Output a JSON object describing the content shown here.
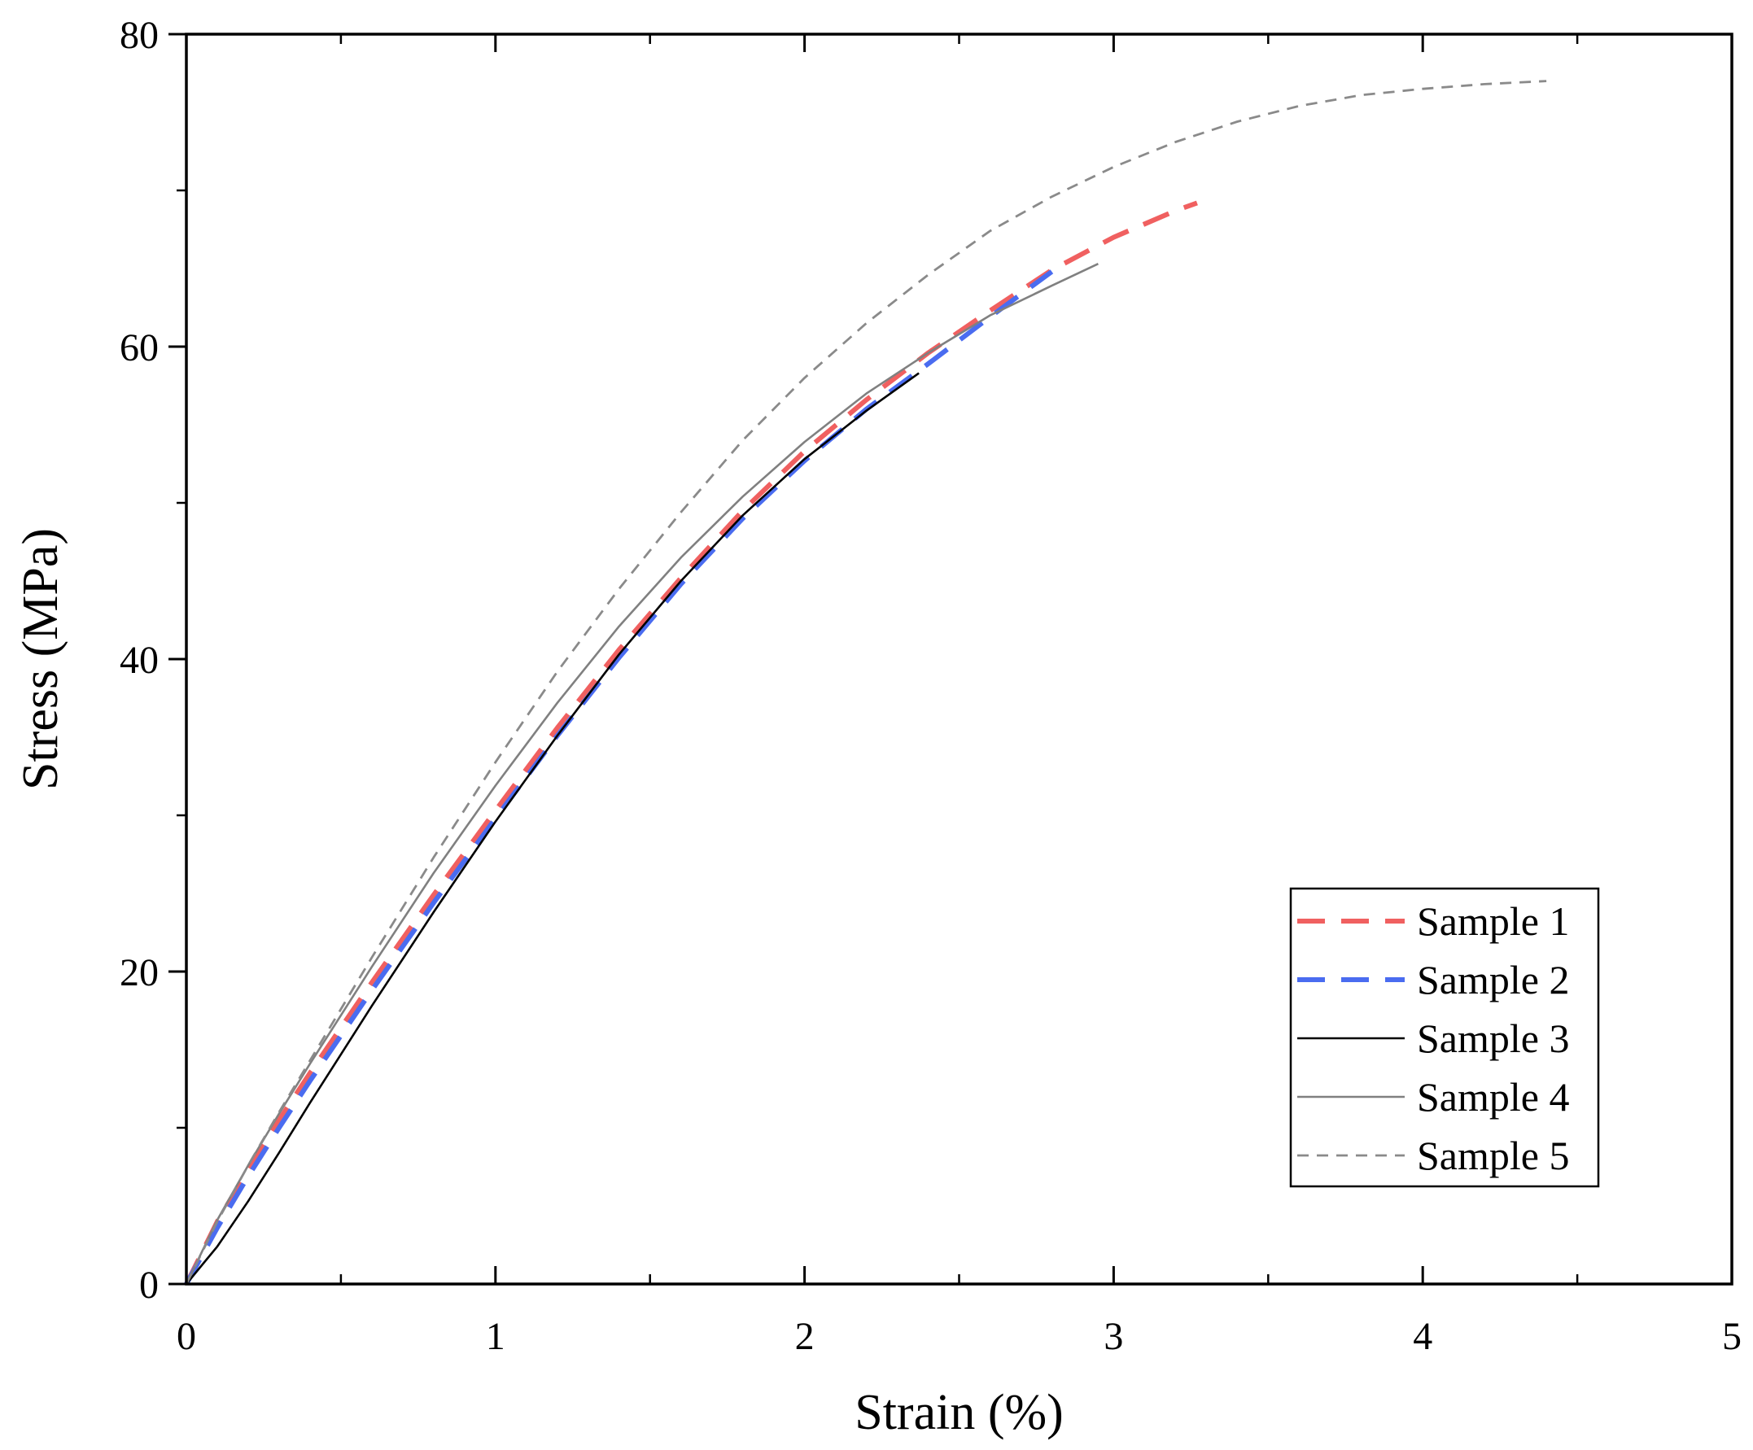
{
  "chart_data": {
    "type": "line",
    "title": "",
    "xlabel": "Strain (%)",
    "ylabel": "Stress (MPa)",
    "xlim": [
      0,
      5
    ],
    "ylim": [
      0,
      80
    ],
    "xticks": [
      0,
      1,
      2,
      3,
      4,
      5
    ],
    "yticks": [
      0,
      20,
      40,
      60,
      80
    ],
    "grid": false,
    "legend_position": "bottom-right",
    "series": [
      {
        "name": "Sample 1",
        "color": "#f06060",
        "dash": "long-dash",
        "x": [
          0,
          0.1,
          0.2,
          0.3,
          0.4,
          0.5,
          0.6,
          0.8,
          1.0,
          1.2,
          1.4,
          1.6,
          1.8,
          2.0,
          2.2,
          2.4,
          2.6,
          2.8,
          3.0,
          3.2,
          3.27
        ],
        "y": [
          0,
          4.0,
          7.3,
          10.5,
          13.5,
          16.4,
          19.3,
          24.9,
          30.3,
          35.6,
          40.6,
          45.2,
          49.5,
          53.3,
          56.6,
          59.6,
          62.3,
          64.9,
          67.0,
          68.7,
          69.2
        ]
      },
      {
        "name": "Sample 2",
        "color": "#4a6cf0",
        "dash": "long-dash",
        "x": [
          0,
          0.1,
          0.2,
          0.3,
          0.4,
          0.5,
          0.6,
          0.8,
          1.0,
          1.2,
          1.4,
          1.6,
          1.8,
          2.0,
          2.2,
          2.4,
          2.6,
          2.8
        ],
        "y": [
          0,
          3.6,
          6.9,
          10.0,
          13.0,
          15.9,
          18.8,
          24.4,
          29.8,
          35.1,
          40.1,
          44.8,
          49.0,
          52.7,
          56.0,
          58.9,
          61.9,
          64.8
        ]
      },
      {
        "name": "Sample 3",
        "color": "#000000",
        "dash": "solid",
        "x": [
          0,
          0.1,
          0.2,
          0.3,
          0.4,
          0.5,
          0.6,
          0.8,
          1.0,
          1.2,
          1.4,
          1.6,
          1.8,
          2.0,
          2.2,
          2.37
        ],
        "y": [
          0,
          2.4,
          5.3,
          8.4,
          11.6,
          14.7,
          17.8,
          23.8,
          29.6,
          35.1,
          40.3,
          45.0,
          49.2,
          52.8,
          55.9,
          58.3
        ]
      },
      {
        "name": "Sample 4",
        "color": "#808080",
        "dash": "solid",
        "x": [
          0,
          0.1,
          0.2,
          0.3,
          0.4,
          0.5,
          0.6,
          0.8,
          1.0,
          1.2,
          1.4,
          1.6,
          1.8,
          2.0,
          2.2,
          2.4,
          2.6,
          2.8,
          2.95
        ],
        "y": [
          0,
          4.1,
          7.6,
          10.9,
          14.1,
          17.2,
          20.3,
          26.3,
          31.9,
          37.2,
          42.1,
          46.5,
          50.4,
          53.9,
          57.0,
          59.6,
          62.0,
          63.9,
          65.3
        ]
      },
      {
        "name": "Sample 5",
        "color": "#8a8a8a",
        "dash": "short-dash",
        "x": [
          0,
          0.1,
          0.2,
          0.3,
          0.4,
          0.5,
          0.6,
          0.8,
          1.0,
          1.2,
          1.4,
          1.6,
          1.8,
          2.0,
          2.2,
          2.4,
          2.6,
          2.8,
          3.0,
          3.2,
          3.4,
          3.6,
          3.8,
          4.0,
          4.2,
          4.4
        ],
        "y": [
          0,
          4.0,
          7.6,
          11.0,
          14.3,
          17.6,
          20.9,
          27.3,
          33.4,
          39.2,
          44.5,
          49.4,
          54.0,
          58.0,
          61.5,
          64.6,
          67.4,
          69.6,
          71.5,
          73.1,
          74.4,
          75.4,
          76.1,
          76.5,
          76.8,
          77.0
        ]
      }
    ]
  }
}
